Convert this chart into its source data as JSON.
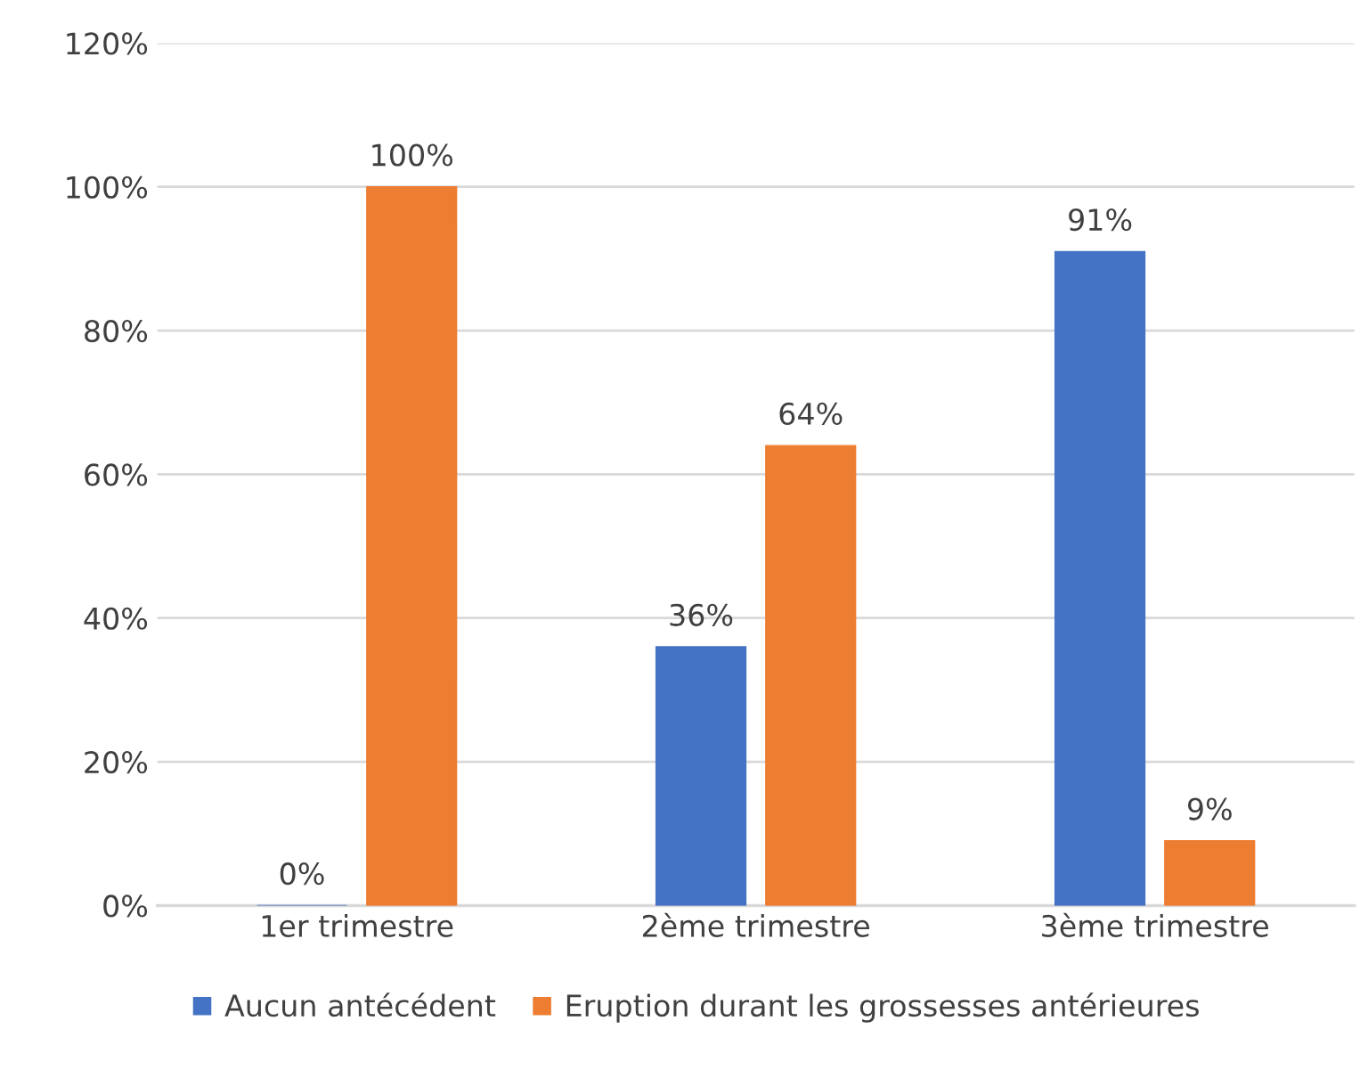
{
  "chart_data": {
    "type": "bar",
    "categories": [
      "1er trimestre",
      "2ème trimestre",
      "3ème trimestre"
    ],
    "series": [
      {
        "name": "Aucun antécédent",
        "color": "#4472c4",
        "values": [
          0,
          36,
          91
        ],
        "value_labels": [
          "0%",
          "36%",
          "91%"
        ]
      },
      {
        "name": "Eruption durant les grossesses antérieures",
        "color": "#ed7d31",
        "values": [
          100,
          64,
          9
        ],
        "value_labels": [
          "100%",
          "64%",
          "9%"
        ]
      }
    ],
    "ylim": [
      0,
      120
    ],
    "yticks": [
      {
        "value": 0,
        "label": "0%"
      },
      {
        "value": 20,
        "label": "20%"
      },
      {
        "value": 40,
        "label": "40%"
      },
      {
        "value": 60,
        "label": "60%"
      },
      {
        "value": 80,
        "label": "80%"
      },
      {
        "value": 100,
        "label": "100%"
      },
      {
        "value": 120,
        "label": "120%"
      }
    ],
    "grid": "y",
    "legend": "bottom"
  }
}
